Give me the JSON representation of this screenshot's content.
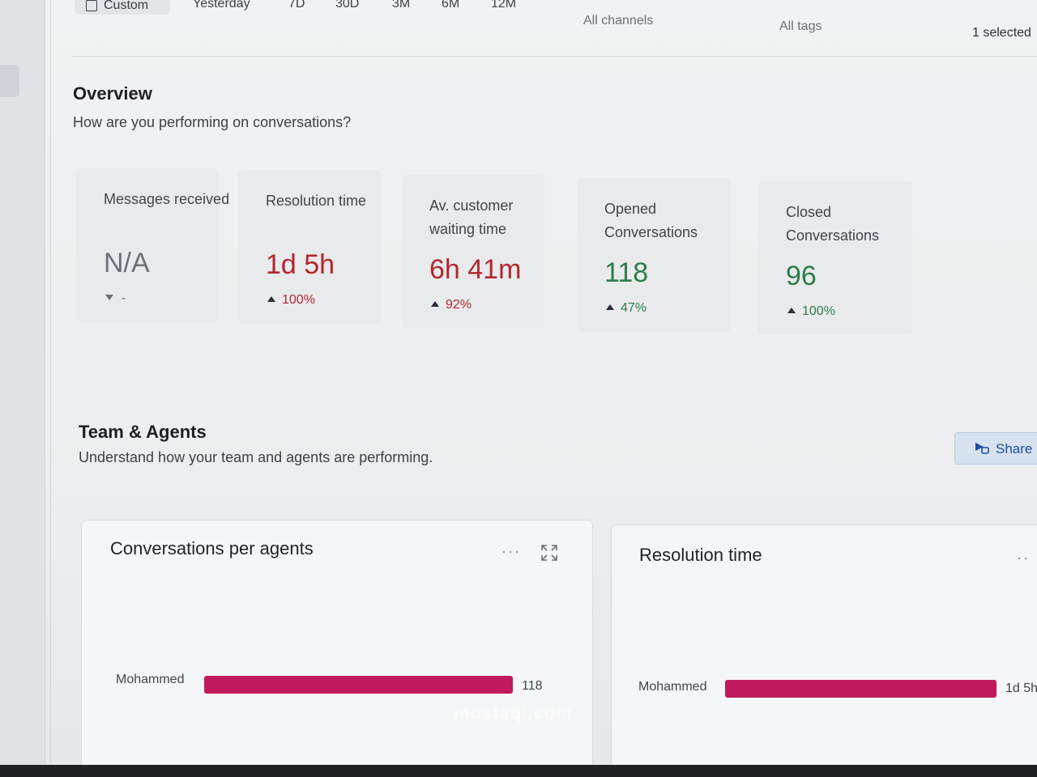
{
  "topbar": {
    "ranges": [
      "Custom",
      "Yesterday",
      "7D",
      "30D",
      "3M",
      "6M",
      "12M"
    ],
    "channels": "All channels",
    "tags": "All tags",
    "selection": "1 selected"
  },
  "overview": {
    "title": "Overview",
    "subtitle": "How are you performing on conversations?",
    "cards": [
      {
        "label": "Messages received",
        "value": "N/A",
        "change": "-",
        "trend": "down"
      },
      {
        "label": "Resolution time",
        "value": "1d 5h",
        "change": "100%",
        "trend": "up"
      },
      {
        "label": "Av. customer waiting time",
        "value": "6h 41m",
        "change": "92%",
        "trend": "up"
      },
      {
        "label": "Opened Conversations",
        "value": "118",
        "change": "47%",
        "trend": "up"
      },
      {
        "label": "Closed Conversations",
        "value": "96",
        "change": "100%",
        "trend": "up"
      }
    ]
  },
  "team": {
    "title": "Team & Agents",
    "subtitle": "Understand how your team and agents are performing.",
    "share_label": "Share"
  },
  "panels": [
    {
      "title": "Conversations per agents",
      "agent": "Mohammed",
      "value": "118",
      "fill": 1.0
    },
    {
      "title": "Resolution time",
      "agent": "Mohammed",
      "value": "1d 5h",
      "fill": 1.0
    }
  ],
  "watermark": "mostaql.com",
  "colors": {
    "bar": "#c01a5a",
    "negative": "#b3262e",
    "positive": "#2e7d4a",
    "share_text": "#1e4e9c"
  }
}
